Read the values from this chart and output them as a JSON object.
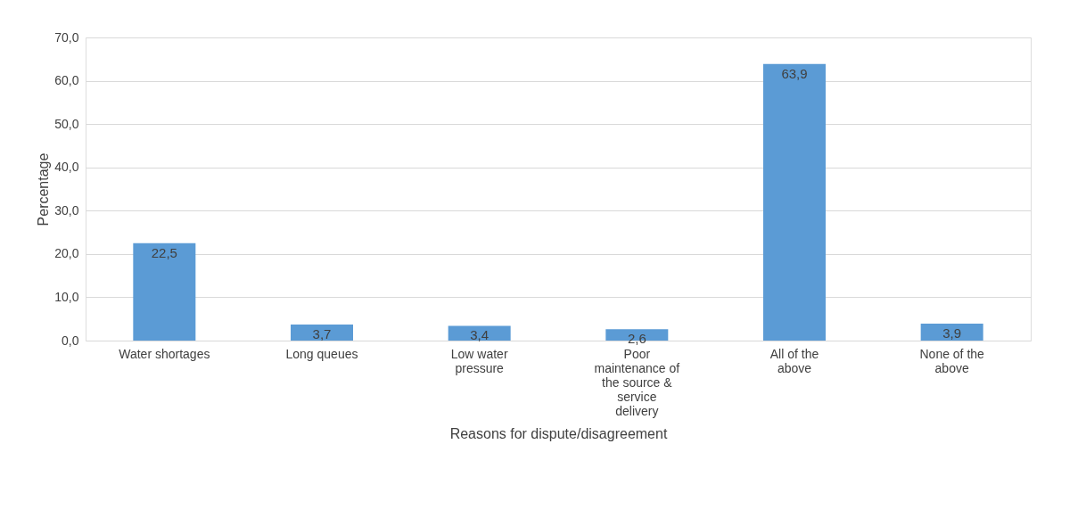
{
  "chart_data": {
    "type": "bar",
    "xlabel": "Reasons for dispute/disagreement",
    "ylabel": "Percentage",
    "categories": [
      "Water shortages",
      "Long queues",
      "Low water pressure",
      "Poor maintenance of the source & service delivery",
      "All of the above",
      "None of the above"
    ],
    "values": [
      22.5,
      3.7,
      3.4,
      2.6,
      63.9,
      3.9
    ],
    "value_labels": [
      "22,5",
      "3,7",
      "3,4",
      "2,6",
      "63,9",
      "3,9"
    ],
    "color": "#5b9bd5",
    "ylim": [
      0,
      70
    ],
    "yticks": [
      {
        "value": 0,
        "label": "0,0"
      },
      {
        "value": 10,
        "label": "10,0"
      },
      {
        "value": 20,
        "label": "20,0"
      },
      {
        "value": 30,
        "label": "30,0"
      },
      {
        "value": 40,
        "label": "40,0"
      },
      {
        "value": 50,
        "label": "50,0"
      },
      {
        "value": 60,
        "label": "60,0"
      },
      {
        "value": 70,
        "label": "70,0"
      }
    ],
    "grid": "y"
  }
}
